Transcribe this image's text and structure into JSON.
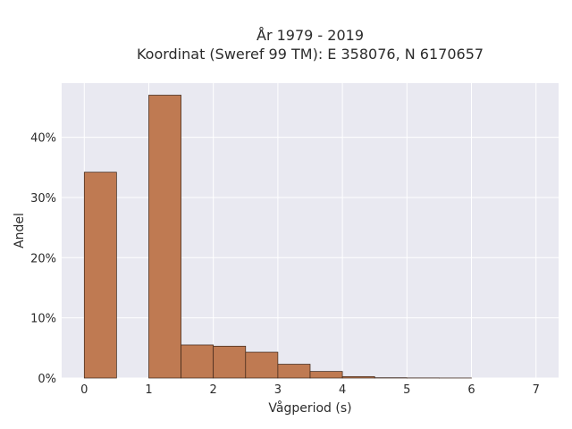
{
  "chart_data": {
    "type": "bar",
    "title_line1": "År 1979 - 2019",
    "title_line2": "Koordinat (Sweref 99 TM): E 358076, N 6170657",
    "xlabel": "Vågperiod (s)",
    "ylabel": "Andel",
    "bin_edges": [
      0,
      0.5,
      1,
      1.5,
      2,
      2.5,
      3,
      3.5,
      4,
      4.5,
      5,
      5.5,
      6
    ],
    "values": [
      34.2,
      0,
      47.0,
      5.5,
      5.3,
      4.3,
      2.3,
      1.1,
      0.25,
      0.05,
      0.02,
      0.01
    ],
    "xlim": [
      -0.35,
      7.35
    ],
    "ylim": [
      0,
      49
    ],
    "xticks": [
      0,
      1,
      2,
      3,
      4,
      5,
      6,
      7
    ],
    "xtick_labels": [
      "0",
      "1",
      "2",
      "3",
      "4",
      "5",
      "6",
      "7"
    ],
    "yticks": [
      0,
      10,
      20,
      30,
      40
    ],
    "ytick_labels": [
      "0%",
      "10%",
      "20%",
      "30%",
      "40%"
    ],
    "grid": true,
    "colors": {
      "bar_fill": "#bf7a52",
      "bar_edge": "#3a2418",
      "plot_bg": "#e9e9f1",
      "grid": "#ffffff"
    }
  }
}
